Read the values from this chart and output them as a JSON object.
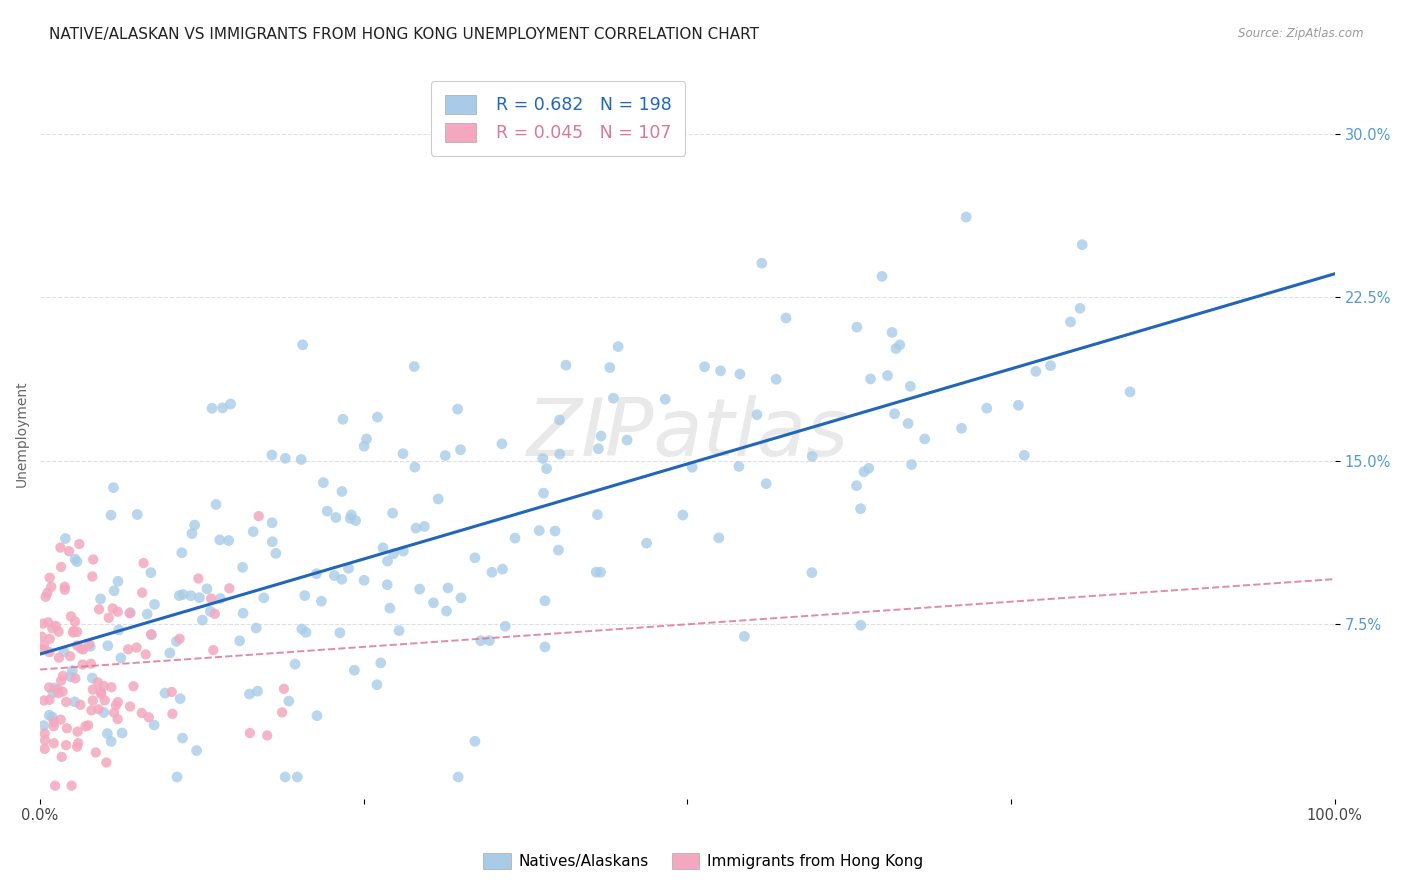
{
  "title": "NATIVE/ALASKAN VS IMMIGRANTS FROM HONG KONG UNEMPLOYMENT CORRELATION CHART",
  "source": "Source: ZipAtlas.com",
  "xlabel": "",
  "ylabel": "Unemployment",
  "xlim": [
    0,
    1.0
  ],
  "ylim": [
    -0.005,
    0.33
  ],
  "yticks": [
    0.075,
    0.15,
    0.225,
    0.3
  ],
  "ytick_labels": [
    "7.5%",
    "15.0%",
    "22.5%",
    "30.0%"
  ],
  "blue_R": 0.682,
  "blue_N": 198,
  "pink_R": 0.045,
  "pink_N": 107,
  "blue_color": "#a8cce8",
  "pink_color": "#f4a8c0",
  "blue_line_color": "#2266bb",
  "pink_line_color": "#dd7799",
  "legend_label_blue": "Natives/Alaskans",
  "legend_label_pink": "Immigrants from Hong Kong",
  "watermark": "ZIPatlas",
  "background_color": "#ffffff",
  "grid_color": "#dddddd",
  "title_fontsize": 11,
  "axis_fontsize": 10,
  "tick_fontsize": 10.5,
  "tick_color": "#5599cc"
}
